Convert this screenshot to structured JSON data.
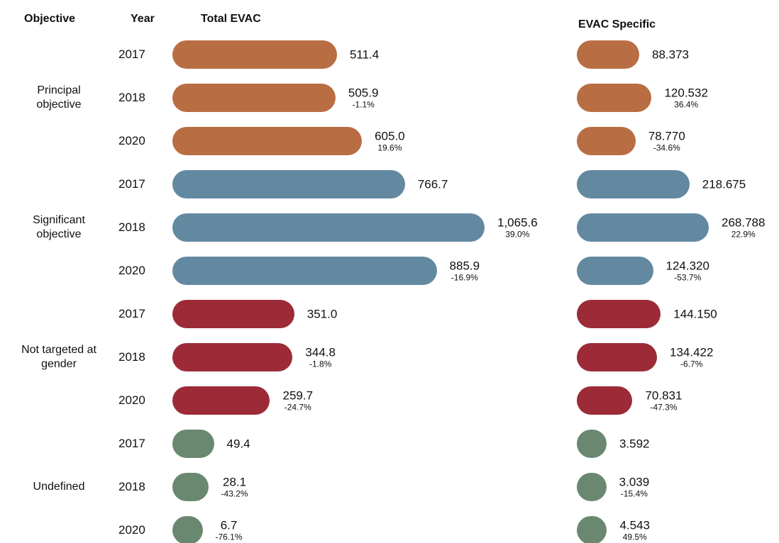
{
  "chart_data": {
    "type": "pill-bar",
    "headers": {
      "objective": "Objective",
      "year": "Year",
      "total": "Total EVAC",
      "specific": "EVAC Specific"
    },
    "groups": [
      {
        "name": "Principal objective",
        "color": "#b86e42",
        "years": [
          "2017",
          "2018",
          "2020"
        ],
        "total": {
          "values": [
            511.4,
            505.9,
            605.0
          ],
          "value_labels": [
            "511.4",
            "505.9",
            "605.0"
          ],
          "change": [
            null,
            -1.1,
            19.6
          ],
          "change_labels": [
            null,
            "-1.1%",
            "19.6%"
          ]
        },
        "specific": {
          "values": [
            88.373,
            120.532,
            78.77
          ],
          "value_labels": [
            "88.373",
            "120.532",
            "78.770"
          ],
          "change": [
            null,
            36.4,
            -34.6
          ],
          "change_labels": [
            null,
            "36.4%",
            "-34.6%"
          ]
        }
      },
      {
        "name": "Significant objective",
        "color": "#6389a1",
        "years": [
          "2017",
          "2018",
          "2020"
        ],
        "total": {
          "values": [
            766.7,
            1065.6,
            885.9
          ],
          "value_labels": [
            "766.7",
            "1,065.6",
            "885.9"
          ],
          "change": [
            null,
            39.0,
            -16.9
          ],
          "change_labels": [
            null,
            "39.0%",
            "-16.9%"
          ]
        },
        "specific": {
          "values": [
            218.675,
            268.788,
            124.32
          ],
          "value_labels": [
            "218.675",
            "268.788",
            "124.320"
          ],
          "change": [
            null,
            22.9,
            -53.7
          ],
          "change_labels": [
            null,
            "22.9%",
            "-53.7%"
          ]
        }
      },
      {
        "name": "Not targeted at gender",
        "color": "#9c2b37",
        "years": [
          "2017",
          "2018",
          "2020"
        ],
        "total": {
          "values": [
            351.0,
            344.8,
            259.7
          ],
          "value_labels": [
            "351.0",
            "344.8",
            "259.7"
          ],
          "change": [
            null,
            -1.8,
            -24.7
          ],
          "change_labels": [
            null,
            "-1.8%",
            "-24.7%"
          ]
        },
        "specific": {
          "values": [
            144.15,
            134.422,
            70.831
          ],
          "value_labels": [
            "144.150",
            "134.422",
            "70.831"
          ],
          "change": [
            null,
            -6.7,
            -47.3
          ],
          "change_labels": [
            null,
            "-6.7%",
            "-47.3%"
          ]
        }
      },
      {
        "name": "Undefined",
        "color": "#6a8870",
        "years": [
          "2017",
          "2018",
          "2020"
        ],
        "total": {
          "values": [
            49.4,
            28.1,
            6.7
          ],
          "value_labels": [
            "49.4",
            "28.1",
            "6.7"
          ],
          "change": [
            null,
            -43.2,
            -76.1
          ],
          "change_labels": [
            null,
            "-43.2%",
            "-76.1%"
          ]
        },
        "specific": {
          "values": [
            3.592,
            3.039,
            4.543
          ],
          "value_labels": [
            "3.592",
            "3.039",
            "4.543"
          ],
          "change": [
            null,
            -15.4,
            49.5
          ],
          "change_labels": [
            null,
            "-15.4%",
            "49.5%"
          ]
        }
      }
    ]
  }
}
